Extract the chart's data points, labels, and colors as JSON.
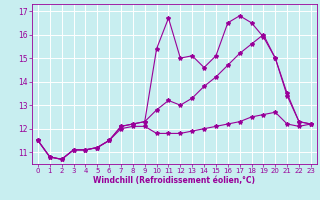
{
  "xlabel": "Windchill (Refroidissement éolien,°C)",
  "bg_color": "#c8eef0",
  "grid_color": "#ffffff",
  "line_color": "#990099",
  "xlim": [
    -0.5,
    23.5
  ],
  "ylim": [
    10.5,
    17.3
  ],
  "yticks": [
    11,
    12,
    13,
    14,
    15,
    16,
    17
  ],
  "xticks": [
    0,
    1,
    2,
    3,
    4,
    5,
    6,
    7,
    8,
    9,
    10,
    11,
    12,
    13,
    14,
    15,
    16,
    17,
    18,
    19,
    20,
    21,
    22,
    23
  ],
  "line1_x": [
    0,
    1,
    2,
    3,
    4,
    5,
    6,
    7,
    8,
    9,
    10,
    11,
    12,
    13,
    14,
    15,
    16,
    17,
    18,
    19,
    20,
    21,
    22,
    23
  ],
  "line1_y": [
    11.5,
    10.8,
    10.7,
    11.1,
    11.1,
    11.2,
    11.5,
    12.1,
    12.2,
    12.3,
    15.4,
    16.7,
    15.0,
    15.1,
    14.6,
    15.1,
    16.5,
    16.8,
    16.5,
    15.9,
    15.0,
    13.4,
    12.3,
    12.2
  ],
  "line2_x": [
    0,
    1,
    2,
    3,
    4,
    5,
    6,
    7,
    8,
    9,
    10,
    11,
    12,
    13,
    14,
    15,
    16,
    17,
    18,
    19,
    20,
    21,
    22,
    23
  ],
  "line2_y": [
    11.5,
    10.8,
    10.7,
    11.1,
    11.1,
    11.2,
    11.5,
    12.1,
    12.2,
    12.3,
    12.8,
    13.2,
    13.0,
    13.3,
    13.8,
    14.2,
    14.7,
    15.2,
    15.6,
    16.0,
    15.0,
    13.5,
    12.3,
    12.2
  ],
  "line3_x": [
    0,
    1,
    2,
    3,
    4,
    5,
    6,
    7,
    8,
    9,
    10,
    11,
    12,
    13,
    14,
    15,
    16,
    17,
    18,
    19,
    20,
    21,
    22,
    23
  ],
  "line3_y": [
    11.5,
    10.8,
    10.7,
    11.1,
    11.1,
    11.2,
    11.5,
    12.0,
    12.1,
    12.1,
    11.8,
    11.8,
    11.8,
    11.9,
    12.0,
    12.1,
    12.2,
    12.3,
    12.5,
    12.6,
    12.7,
    12.2,
    12.1,
    12.2
  ],
  "marker": "*",
  "markersize": 3,
  "linewidth": 0.8,
  "tick_fontsize": 5,
  "xlabel_fontsize": 5.5
}
